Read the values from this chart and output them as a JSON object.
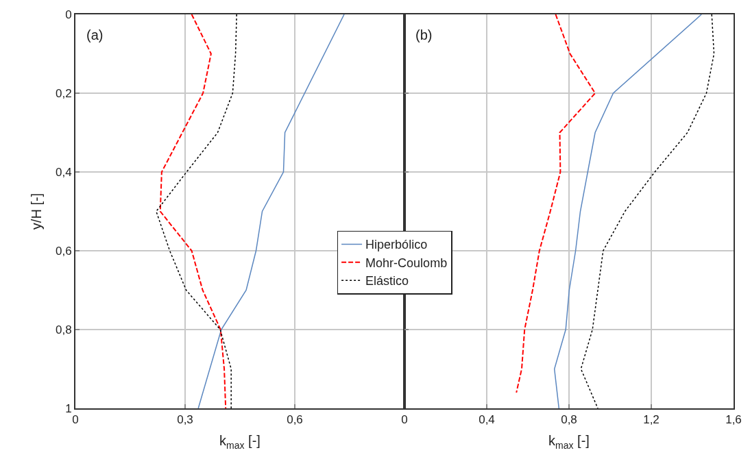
{
  "chart_data": [
    {
      "type": "line",
      "xlabel": "k$_{max}$ [-]",
      "ylabel": "y/H [-]",
      "annotations": [
        "(a)"
      ],
      "xlim": [
        0,
        0.9
      ],
      "xticks": [
        0,
        {
          "value": 0.3,
          "label": "0,3"
        },
        {
          "value": 0.6,
          "label": "0,6"
        },
        {
          "value": 0.9,
          "label": null
        }
      ],
      "ylim": [
        1,
        0
      ],
      "yticks": [
        0,
        {
          "value": 0.2,
          "label": "0,2"
        },
        {
          "value": 0.4,
          "label": "0,4"
        },
        {
          "value": 0.6,
          "label": "0,6"
        },
        {
          "value": 0.8,
          "label": "0,8"
        },
        1
      ],
      "grid": true,
      "legend": "center",
      "marker": "none",
      "series": [
        {
          "name": "Hiperbólico",
          "color": "#5b87c0",
          "line_style": "solid",
          "x": [
            0.735,
            0.573,
            0.569,
            0.511,
            0.494,
            0.467,
            0.399,
            0.336
          ],
          "values": [
            0,
            0.3,
            0.4,
            0.5,
            0.6,
            0.7,
            0.8,
            1
          ]
        },
        {
          "name": "Mohr-Coulomb",
          "color": "#ff0000",
          "line_style": "dashed",
          "x": [
            0.318,
            0.371,
            0.349,
            0.236,
            0.232,
            0.318,
            0.348,
            0.397,
            0.407,
            0.411
          ],
          "values": [
            0,
            0.1,
            0.2,
            0.4,
            0.5,
            0.6,
            0.7,
            0.8,
            0.9,
            1
          ]
        },
        {
          "name": "Elástico",
          "color": "#000000",
          "line_style": "dotted",
          "x": [
            0.441,
            0.438,
            0.43,
            0.389,
            0.304,
            0.221,
            0.258,
            0.303,
            0.396,
            0.426,
            0.426
          ],
          "values": [
            0,
            0.1,
            0.2,
            0.3,
            0.4,
            0.5,
            0.6,
            0.7,
            0.8,
            0.9,
            1
          ]
        }
      ]
    },
    {
      "type": "line",
      "xlabel": "k$_{max}$ [-]",
      "annotations": [
        "(b)"
      ],
      "xlim": [
        0,
        1.6
      ],
      "xticks": [
        0,
        {
          "value": 0.4,
          "label": "0,4"
        },
        {
          "value": 0.8,
          "label": "0,8"
        },
        {
          "value": 1.2,
          "label": "1,2"
        },
        {
          "value": 1.6,
          "label": "1,6"
        }
      ],
      "ylim": [
        1,
        0
      ],
      "yticks": [
        {
          "value": 0,
          "label": null
        },
        {
          "value": 0.2,
          "label": null
        },
        {
          "value": 0.4,
          "label": null
        },
        {
          "value": 0.6,
          "label": null
        },
        {
          "value": 0.8,
          "label": null
        },
        {
          "value": 1,
          "label": null
        }
      ],
      "tick_labels": "x",
      "grid": true,
      "marker": "none",
      "series": [
        {
          "color": "#5b87c0",
          "line_style": "solid",
          "x": [
            1.444,
            1.015,
            0.927,
            0.891,
            0.855,
            0.832,
            0.801,
            0.784,
            0.729,
            0.751
          ],
          "values": [
            0,
            0.2,
            0.3,
            0.4,
            0.5,
            0.6,
            0.7,
            0.8,
            0.9,
            1
          ]
        },
        {
          "color": "#ff0000",
          "line_style": "dashed",
          "x": [
            0.735,
            0.805,
            0.927,
            0.755,
            0.758,
            0.709,
            0.656,
            0.623,
            0.584,
            0.57,
            0.544
          ],
          "values": [
            0,
            0.1,
            0.2,
            0.3,
            0.4,
            0.5,
            0.6,
            0.7,
            0.8,
            0.9,
            0.96
          ]
        },
        {
          "color": "#000000",
          "line_style": "dotted",
          "x": [
            1.494,
            1.505,
            1.468,
            1.376,
            1.217,
            1.072,
            0.966,
            0.94,
            0.914,
            0.858,
            0.94
          ],
          "values": [
            0,
            0.1,
            0.2,
            0.3,
            0.4,
            0.5,
            0.6,
            0.7,
            0.8,
            0.9,
            1
          ]
        }
      ]
    }
  ]
}
